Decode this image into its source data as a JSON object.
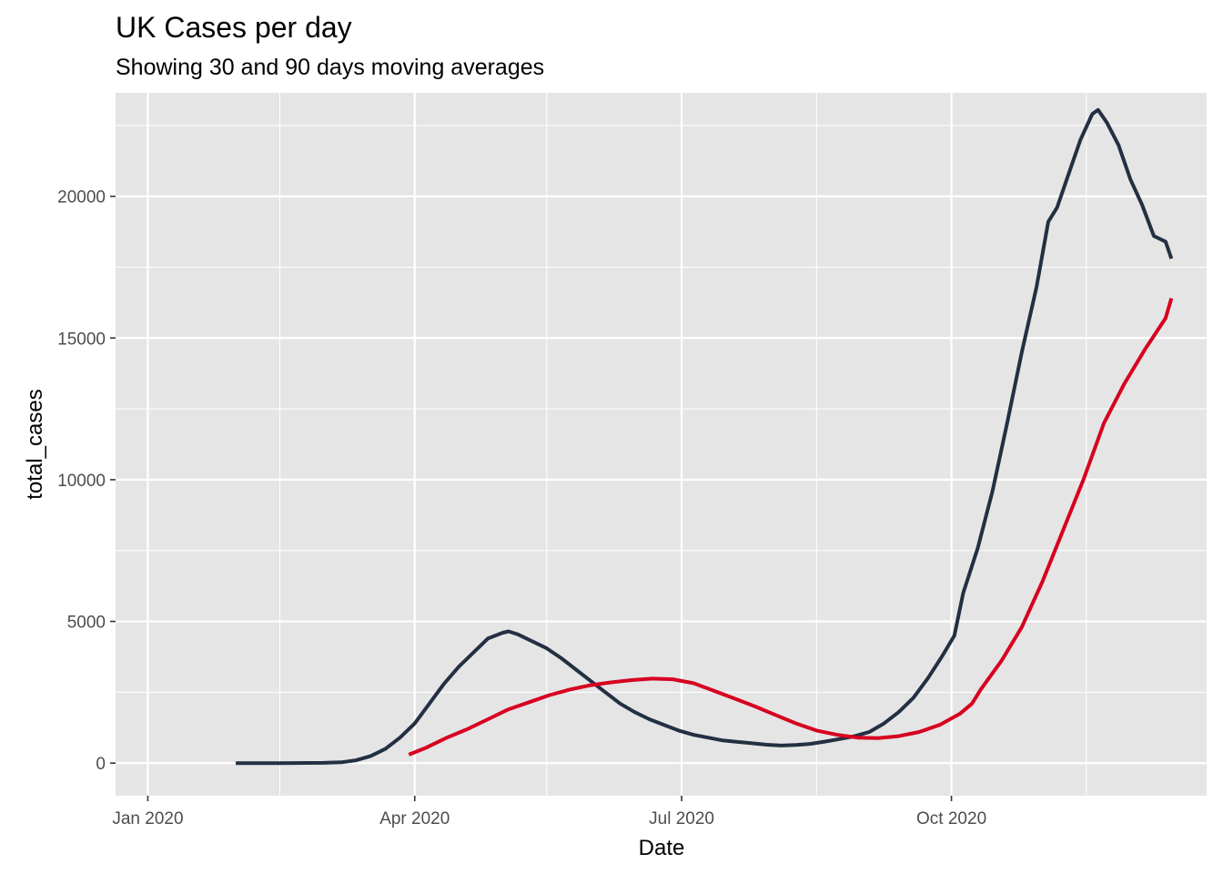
{
  "chart_data": {
    "type": "line",
    "title": "UK Cases per day",
    "subtitle": "Showing 30 and 90 days moving averages",
    "xlabel": "Date",
    "ylabel": "total_cases",
    "x_range": [
      "2019-12-21",
      "2020-12-27"
    ],
    "ylim": [
      -1150,
      23650
    ],
    "x_ticks": [
      {
        "date": "2020-01-01",
        "label": "Jan 2020"
      },
      {
        "date": "2020-04-01",
        "label": "Apr 2020"
      },
      {
        "date": "2020-07-01",
        "label": "Jul 2020"
      },
      {
        "date": "2020-10-01",
        "label": "Oct 2020"
      }
    ],
    "x_minor_ticks": [
      "2020-02-15",
      "2020-05-16",
      "2020-08-16",
      "2020-11-16"
    ],
    "y_ticks": [
      0,
      5000,
      10000,
      15000,
      20000
    ],
    "y_tick_labels": [
      "0",
      "5000",
      "10000",
      "15000",
      "20000"
    ],
    "grid": true,
    "background": "#e5e5e5",
    "series": [
      {
        "color": "#233042",
        "points": [
          [
            "2020-01-31",
            0
          ],
          [
            "2020-02-15",
            0
          ],
          [
            "2020-03-01",
            10
          ],
          [
            "2020-03-07",
            30
          ],
          [
            "2020-03-12",
            100
          ],
          [
            "2020-03-17",
            250
          ],
          [
            "2020-03-22",
            500
          ],
          [
            "2020-03-27",
            900
          ],
          [
            "2020-04-01",
            1400
          ],
          [
            "2020-04-06",
            2100
          ],
          [
            "2020-04-11",
            2800
          ],
          [
            "2020-04-16",
            3400
          ],
          [
            "2020-04-21",
            3900
          ],
          [
            "2020-04-26",
            4400
          ],
          [
            "2020-05-01",
            4600
          ],
          [
            "2020-05-03",
            4650
          ],
          [
            "2020-05-06",
            4550
          ],
          [
            "2020-05-11",
            4300
          ],
          [
            "2020-05-16",
            4050
          ],
          [
            "2020-05-21",
            3700
          ],
          [
            "2020-05-26",
            3300
          ],
          [
            "2020-05-31",
            2900
          ],
          [
            "2020-06-05",
            2500
          ],
          [
            "2020-06-10",
            2100
          ],
          [
            "2020-06-15",
            1800
          ],
          [
            "2020-06-20",
            1550
          ],
          [
            "2020-06-25",
            1350
          ],
          [
            "2020-06-30",
            1150
          ],
          [
            "2020-07-05",
            1000
          ],
          [
            "2020-07-10",
            900
          ],
          [
            "2020-07-15",
            800
          ],
          [
            "2020-07-20",
            750
          ],
          [
            "2020-07-25",
            700
          ],
          [
            "2020-07-30",
            650
          ],
          [
            "2020-08-04",
            620
          ],
          [
            "2020-08-09",
            640
          ],
          [
            "2020-08-14",
            680
          ],
          [
            "2020-08-19",
            760
          ],
          [
            "2020-08-24",
            850
          ],
          [
            "2020-08-29",
            950
          ],
          [
            "2020-09-03",
            1100
          ],
          [
            "2020-09-08",
            1400
          ],
          [
            "2020-09-13",
            1800
          ],
          [
            "2020-09-18",
            2300
          ],
          [
            "2020-09-23",
            3000
          ],
          [
            "2020-09-28",
            3800
          ],
          [
            "2020-10-02",
            4500
          ],
          [
            "2020-10-05",
            6000
          ],
          [
            "2020-10-10",
            7600
          ],
          [
            "2020-10-15",
            9600
          ],
          [
            "2020-10-20",
            12000
          ],
          [
            "2020-10-25",
            14500
          ],
          [
            "2020-10-30",
            16800
          ],
          [
            "2020-11-03",
            19100
          ],
          [
            "2020-11-06",
            19600
          ],
          [
            "2020-11-10",
            20800
          ],
          [
            "2020-11-14",
            22000
          ],
          [
            "2020-11-18",
            22900
          ],
          [
            "2020-11-20",
            23050
          ],
          [
            "2020-11-23",
            22600
          ],
          [
            "2020-11-27",
            21800
          ],
          [
            "2020-12-01",
            20600
          ],
          [
            "2020-12-05",
            19700
          ],
          [
            "2020-12-09",
            18600
          ],
          [
            "2020-12-13",
            18400
          ],
          [
            "2020-12-15",
            17800
          ]
        ]
      },
      {
        "color": "#d7001f",
        "points": [
          [
            "2020-03-30",
            300
          ],
          [
            "2020-04-05",
            550
          ],
          [
            "2020-04-12",
            900
          ],
          [
            "2020-04-19",
            1200
          ],
          [
            "2020-04-26",
            1550
          ],
          [
            "2020-05-03",
            1900
          ],
          [
            "2020-05-10",
            2150
          ],
          [
            "2020-05-17",
            2400
          ],
          [
            "2020-05-24",
            2600
          ],
          [
            "2020-05-31",
            2750
          ],
          [
            "2020-06-07",
            2850
          ],
          [
            "2020-06-14",
            2930
          ],
          [
            "2020-06-21",
            2980
          ],
          [
            "2020-06-28",
            2960
          ],
          [
            "2020-07-05",
            2820
          ],
          [
            "2020-07-12",
            2550
          ],
          [
            "2020-07-19",
            2280
          ],
          [
            "2020-07-26",
            2000
          ],
          [
            "2020-08-02",
            1700
          ],
          [
            "2020-08-09",
            1400
          ],
          [
            "2020-08-16",
            1150
          ],
          [
            "2020-08-23",
            1000
          ],
          [
            "2020-08-30",
            900
          ],
          [
            "2020-09-06",
            880
          ],
          [
            "2020-09-13",
            950
          ],
          [
            "2020-09-20",
            1100
          ],
          [
            "2020-09-27",
            1350
          ],
          [
            "2020-10-04",
            1750
          ],
          [
            "2020-10-08",
            2100
          ],
          [
            "2020-10-11",
            2600
          ],
          [
            "2020-10-18",
            3600
          ],
          [
            "2020-10-25",
            4800
          ],
          [
            "2020-11-01",
            6400
          ],
          [
            "2020-11-08",
            8200
          ],
          [
            "2020-11-15",
            10000
          ],
          [
            "2020-11-22",
            12000
          ],
          [
            "2020-11-29",
            13400
          ],
          [
            "2020-12-06",
            14600
          ],
          [
            "2020-12-13",
            15700
          ],
          [
            "2020-12-15",
            16400
          ]
        ]
      }
    ]
  }
}
